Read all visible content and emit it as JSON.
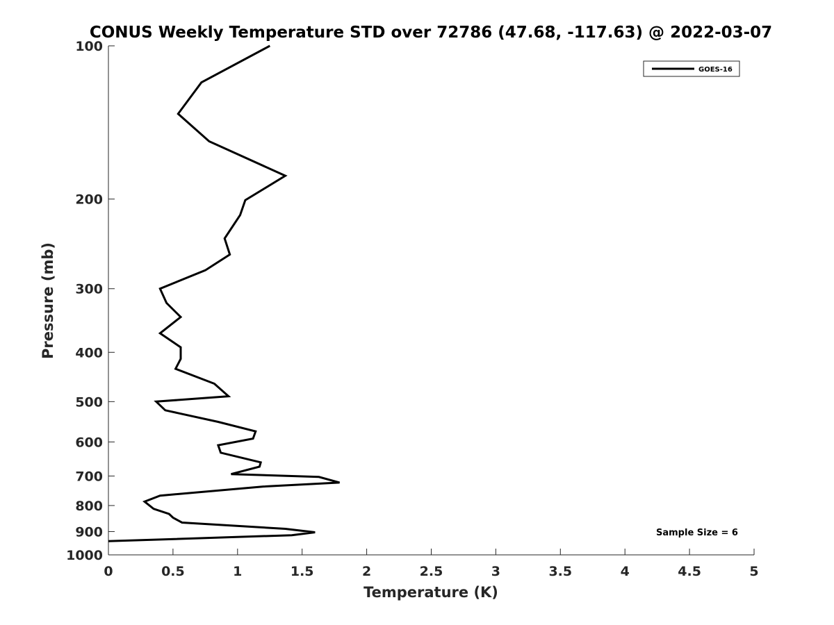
{
  "chart_data": {
    "type": "line",
    "title": "CONUS Weekly Temperature STD over 72786 (47.68, -117.63) @ 2022-03-07",
    "xlabel": "Temperature (K)",
    "ylabel": "Pressure (mb)",
    "xlim": [
      0,
      5
    ],
    "ylim": [
      100,
      1000
    ],
    "yscale": "log",
    "y_reversed": true,
    "grid": false,
    "xticks": [
      0,
      0.5,
      1,
      1.5,
      2,
      2.5,
      3,
      3.5,
      4,
      4.5,
      5
    ],
    "xtick_labels": [
      "0",
      "0.5",
      "1",
      "1.5",
      "2",
      "2.5",
      "3",
      "3.5",
      "4",
      "4.5",
      "5"
    ],
    "yticks": [
      100,
      200,
      300,
      400,
      500,
      600,
      700,
      800,
      900,
      1000
    ],
    "ytick_labels": [
      "100",
      "200",
      "300",
      "400",
      "500",
      "600",
      "700",
      "800",
      "900",
      "1000"
    ],
    "legend_position": "top-right",
    "annotation": "Sample Size = 6",
    "series": [
      {
        "name": "GOES-16",
        "color": "#000000",
        "x": [
          1.25,
          0.72,
          0.54,
          0.78,
          1.37,
          1.06,
          1.02,
          0.9,
          0.94,
          0.75,
          0.4,
          0.45,
          0.56,
          0.4,
          0.56,
          0.56,
          0.52,
          0.82,
          0.93,
          0.37,
          0.44,
          0.85,
          1.14,
          1.12,
          0.85,
          0.87,
          1.18,
          1.17,
          0.95,
          1.63,
          1.79,
          1.2,
          0.4,
          0.28,
          0.35,
          0.47,
          0.5,
          0.57,
          1.37,
          1.6,
          1.42,
          0.0
        ],
        "y": [
          100,
          118,
          136,
          154,
          180,
          201,
          215,
          239,
          257,
          276,
          300,
          320,
          341,
          367,
          391,
          412,
          431,
          461,
          488,
          500,
          520,
          548,
          572,
          591,
          609,
          630,
          658,
          671,
          694,
          703,
          721,
          734,
          765,
          786,
          812,
          831,
          845,
          864,
          889,
          903,
          915,
          940
        ]
      }
    ]
  }
}
